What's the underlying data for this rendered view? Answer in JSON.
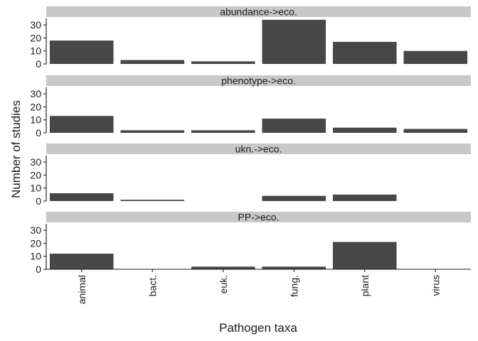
{
  "chart_data": {
    "type": "bar",
    "facet_layout": "vertical",
    "xlabel": "Pathogen taxa",
    "ylabel": "Number of studies",
    "categories": [
      "animal",
      "bact.",
      "euk.",
      "fung.",
      "plant",
      "virus"
    ],
    "ylim": [
      0,
      35
    ],
    "yticks": [
      0,
      10,
      20,
      30
    ],
    "x_tick_rotation": "vertical",
    "grid": false,
    "bar_color": "#474747",
    "strip_color": "#c8c8c8",
    "facets": [
      {
        "label": "abundance->eco.",
        "values": [
          18,
          3,
          2,
          34,
          17,
          10
        ]
      },
      {
        "label": "phenotype->eco.",
        "values": [
          13,
          2,
          2,
          11,
          4,
          3
        ]
      },
      {
        "label": "ukn.->eco.",
        "values": [
          6,
          1,
          0,
          4,
          5,
          0
        ]
      },
      {
        "label": "PP->eco.",
        "values": [
          12,
          0,
          2,
          2,
          21,
          0
        ]
      }
    ]
  }
}
